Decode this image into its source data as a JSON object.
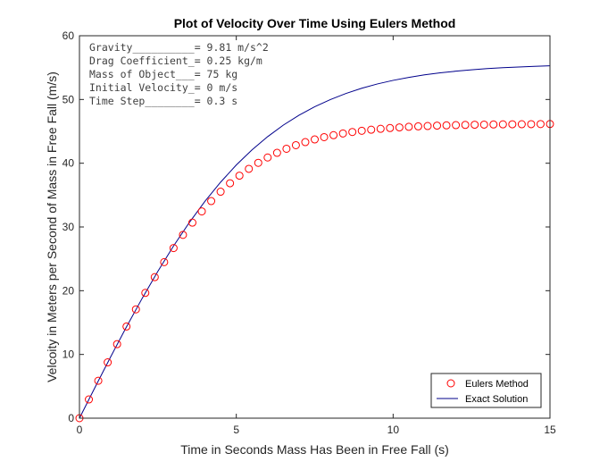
{
  "chart_data": {
    "type": "line",
    "title": "Plot of Velocity Over Time Using Eulers Method",
    "xlabel": "Time in Seconds Mass Has Been in Free Fall (s)",
    "ylabel": "Velcoity in Meters per Second of Mass in Free Fall (m/s)",
    "xlim": [
      0,
      15
    ],
    "ylim": [
      0,
      60
    ],
    "xticks": [
      0,
      5,
      10,
      15
    ],
    "yticks": [
      0,
      10,
      20,
      30,
      40,
      50,
      60
    ],
    "grid": false,
    "legend_position": "bottom-right",
    "annotations": [
      "Gravity__________= 9.81 m/s^2",
      "Drag Coefficient_= 0.25 kg/m",
      "Mass of Object___= 75 kg",
      "Initial Velocity_= 0 m/s",
      "Time Step________= 0.3 s"
    ],
    "series": [
      {
        "name": "Eulers Method",
        "style": "markers-circle",
        "color": "#ff0000",
        "x": [
          0,
          0.3,
          0.6,
          0.9,
          1.2,
          1.5,
          1.8,
          2.1,
          2.4,
          2.7,
          3.0,
          3.3,
          3.6,
          3.9,
          4.2,
          4.5,
          4.8,
          5.1,
          5.4,
          5.7,
          6.0,
          6.3,
          6.6,
          6.9,
          7.2,
          7.5,
          7.8,
          8.1,
          8.4,
          8.7,
          9.0,
          9.3,
          9.6,
          9.9,
          10.2,
          10.5,
          10.8,
          11.1,
          11.4,
          11.7,
          12.0,
          12.3,
          12.6,
          12.9,
          13.2,
          13.5,
          13.8,
          14.1,
          14.4,
          14.7,
          15.0
        ],
        "y": [
          0,
          2.94,
          5.87,
          8.76,
          11.61,
          14.38,
          17.07,
          19.66,
          22.13,
          24.48,
          26.69,
          28.76,
          30.68,
          32.44,
          34.06,
          35.53,
          36.86,
          38.05,
          39.12,
          40.06,
          40.9,
          41.63,
          42.27,
          42.83,
          43.31,
          43.73,
          44.09,
          44.4,
          44.67,
          44.9,
          45.09,
          45.26,
          45.4,
          45.52,
          45.62,
          45.71,
          45.78,
          45.84,
          45.9,
          45.94,
          45.98,
          46.01,
          46.04,
          46.06,
          46.08,
          46.1,
          46.11,
          46.12,
          46.13,
          46.14,
          46.15
        ]
      },
      {
        "name": "Exact Solution",
        "style": "line",
        "color": "#00008b",
        "x": [
          0,
          0.5,
          1.0,
          1.5,
          2.0,
          2.5,
          3.0,
          3.5,
          4.0,
          4.5,
          5.0,
          5.5,
          6.0,
          6.5,
          7.0,
          7.5,
          8.0,
          8.5,
          9.0,
          9.5,
          10.0,
          10.5,
          11.0,
          11.5,
          12.0,
          12.5,
          13.0,
          13.5,
          14.0,
          14.5,
          15.0
        ],
        "y": [
          0,
          4.87,
          9.67,
          14.34,
          18.81,
          23.05,
          27.02,
          30.68,
          34.02,
          37.03,
          39.72,
          42.09,
          44.17,
          45.98,
          47.53,
          48.86,
          49.99,
          50.95,
          51.76,
          52.44,
          53.0,
          53.47,
          53.86,
          54.18,
          54.44,
          54.66,
          54.84,
          54.98,
          55.1,
          55.2,
          55.28
        ]
      }
    ]
  }
}
